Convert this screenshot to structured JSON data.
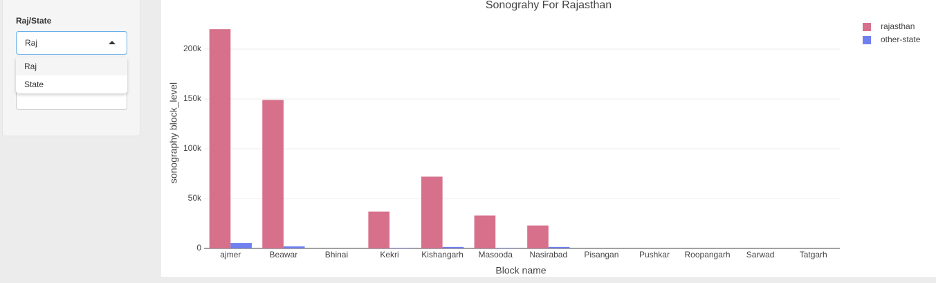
{
  "sidebar": {
    "label": "Raj/State",
    "selected": "Raj",
    "options": [
      "Raj",
      "State"
    ]
  },
  "chart_data": {
    "type": "bar",
    "title": "Sonograhy For Rajasthan",
    "xlabel": "Block name",
    "ylabel": "sonography block_level",
    "categories": [
      "ajmer",
      "Beawar",
      "Bhinai",
      "Kekri",
      "Kishangarh",
      "Masooda",
      "Nasirabad",
      "Pisangan",
      "Pushkar",
      "Roopangarh",
      "Sarwad",
      "Tatgarh"
    ],
    "series": [
      {
        "name": "rajasthan",
        "color": "#d6708b",
        "values": [
          220000,
          149000,
          0,
          37000,
          72000,
          33000,
          23000,
          0,
          0,
          0,
          0,
          0
        ]
      },
      {
        "name": "other-state",
        "color": "#7080ef",
        "values": [
          5500,
          2000,
          0,
          500,
          1500,
          500,
          1500,
          0,
          0,
          0,
          0,
          0
        ]
      }
    ],
    "ylim": [
      0,
      234000
    ],
    "yticks": [
      0,
      {
        "value": 50000,
        "label": "50k"
      },
      {
        "value": 100000,
        "label": "100k"
      },
      {
        "value": 150000,
        "label": "150k"
      },
      {
        "value": 200000,
        "label": "200k"
      }
    ],
    "grid": true,
    "legend": "top-right"
  }
}
